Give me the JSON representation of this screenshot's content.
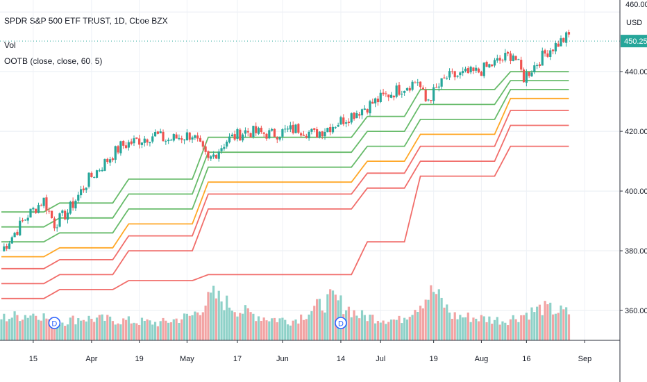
{
  "header": {
    "symbol_title": "SPDR S&P 500 ETF TRUST, 1D, Cboe BZX",
    "vol_label": "Vol",
    "indicator_label": "OOTB (close, close, 60, 5)"
  },
  "price_axis": {
    "currency": "USD",
    "top_label": "460.00",
    "last_price": "450.25",
    "ticks": [
      "440.00",
      "420.00",
      "400.00",
      "380.00",
      "360.00"
    ]
  },
  "time_axis": {
    "labels": [
      "15",
      "Apr",
      "19",
      "May",
      "17",
      "Jun",
      "14",
      "Jul",
      "19",
      "Aug",
      "16",
      "Sep"
    ]
  },
  "colors": {
    "up": "#26a69a",
    "down": "#ef5350",
    "vol_up": "#8ed1c8",
    "vol_down": "#f2a3a3",
    "band_green": "#4caf50",
    "band_orange": "#ff9800",
    "band_red": "#ef5350",
    "dividend": "#2962ff",
    "last_price_bg": "#26a69a"
  },
  "chart_data": {
    "type": "line",
    "title": "SPDR S&P 500 ETF TRUST, 1D, Cboe BZX",
    "x_labels": [
      "15",
      "Apr",
      "19",
      "May",
      "17",
      "Jun",
      "14",
      "Jul",
      "19",
      "Aug",
      "16",
      "Sep"
    ],
    "ylabel": "USD",
    "ylim": [
      350,
      464
    ],
    "price_close_waypoints": [
      [
        0,
        380
      ],
      [
        10,
        392
      ],
      [
        16,
        397
      ],
      [
        20,
        389
      ],
      [
        25,
        393
      ],
      [
        33,
        404
      ],
      [
        45,
        415
      ],
      [
        58,
        419
      ],
      [
        62,
        417
      ],
      [
        72,
        419
      ],
      [
        78,
        410
      ],
      [
        85,
        417
      ],
      [
        92,
        420
      ],
      [
        102,
        419
      ],
      [
        112,
        421
      ],
      [
        118,
        419
      ],
      [
        127,
        423
      ],
      [
        145,
        432
      ],
      [
        157,
        437
      ],
      [
        160,
        430
      ],
      [
        168,
        438
      ],
      [
        180,
        440
      ],
      [
        193,
        446
      ],
      [
        197,
        438
      ],
      [
        206,
        447
      ],
      [
        214,
        452
      ]
    ],
    "price_noise_amplitude": 2.2,
    "bands": [
      {
        "color": "green",
        "steps": [
          [
            0,
            393
          ],
          [
            22,
            396
          ],
          [
            48,
            404
          ],
          [
            78,
            418
          ],
          [
            138,
            425
          ],
          [
            158,
            434
          ],
          [
            192,
            440
          ],
          [
            214,
            440
          ]
        ]
      },
      {
        "color": "green",
        "steps": [
          [
            0,
            388
          ],
          [
            22,
            391
          ],
          [
            48,
            399
          ],
          [
            78,
            413
          ],
          [
            138,
            420
          ],
          [
            158,
            429
          ],
          [
            192,
            437
          ],
          [
            214,
            437
          ]
        ]
      },
      {
        "color": "green",
        "steps": [
          [
            0,
            383
          ],
          [
            22,
            386
          ],
          [
            48,
            394
          ],
          [
            78,
            408
          ],
          [
            138,
            415
          ],
          [
            158,
            424
          ],
          [
            192,
            434
          ],
          [
            214,
            434
          ]
        ]
      },
      {
        "color": "orange",
        "steps": [
          [
            0,
            378
          ],
          [
            22,
            381
          ],
          [
            48,
            389
          ],
          [
            78,
            403
          ],
          [
            138,
            410
          ],
          [
            158,
            419
          ],
          [
            192,
            431
          ],
          [
            214,
            431
          ]
        ]
      },
      {
        "color": "red",
        "steps": [
          [
            0,
            374
          ],
          [
            22,
            377
          ],
          [
            48,
            385
          ],
          [
            78,
            399
          ],
          [
            138,
            406
          ],
          [
            158,
            415
          ],
          [
            192,
            427
          ],
          [
            214,
            427
          ]
        ]
      },
      {
        "color": "red",
        "steps": [
          [
            0,
            369
          ],
          [
            22,
            372
          ],
          [
            48,
            380
          ],
          [
            78,
            394
          ],
          [
            138,
            401
          ],
          [
            158,
            410
          ],
          [
            192,
            422
          ],
          [
            214,
            422
          ]
        ]
      },
      {
        "color": "red",
        "steps": [
          [
            0,
            364
          ],
          [
            22,
            367
          ],
          [
            48,
            370
          ],
          [
            78,
            372
          ],
          [
            138,
            383
          ],
          [
            158,
            405
          ],
          [
            192,
            415
          ],
          [
            214,
            415
          ]
        ]
      }
    ],
    "volume_waypoints": [
      [
        0,
        0.45
      ],
      [
        14,
        0.55
      ],
      [
        20,
        0.35
      ],
      [
        30,
        0.45
      ],
      [
        60,
        0.35
      ],
      [
        72,
        0.5
      ],
      [
        80,
        0.9
      ],
      [
        90,
        0.6
      ],
      [
        100,
        0.45
      ],
      [
        110,
        0.4
      ],
      [
        125,
        0.85
      ],
      [
        135,
        0.5
      ],
      [
        150,
        0.4
      ],
      [
        163,
        1.0
      ],
      [
        170,
        0.5
      ],
      [
        190,
        0.4
      ],
      [
        204,
        0.65
      ],
      [
        214,
        0.55
      ]
    ],
    "dividend_marks": [
      "D",
      "D"
    ],
    "grid": true,
    "legend_position": "top-left"
  }
}
